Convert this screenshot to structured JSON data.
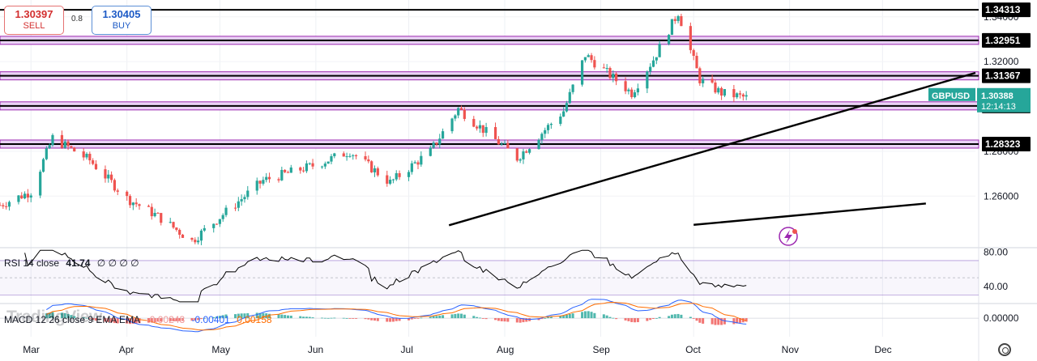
{
  "quotes": {
    "sell_price": "1.30397",
    "sell_label": "SELL",
    "buy_price": "1.30405",
    "buy_label": "BUY",
    "spread": "0.8"
  },
  "chart_data": [
    {
      "type": "candlestick",
      "symbol": "GBPUSD",
      "last_price": "1.30388",
      "countdown": "12:14:13",
      "ylim": [
        1.237,
        1.3475
      ],
      "y_ticks": [
        "1.34000",
        "1.32000",
        "1.28000",
        "1.26000"
      ],
      "x_ticks": [
        "Mar",
        "Apr",
        "May",
        "Jun",
        "Jul",
        "Aug",
        "Sep",
        "Oct",
        "Nov",
        "Dec"
      ],
      "x_tick_dates": [
        "2024-03-01",
        "2024-04-01",
        "2024-05-01",
        "2024-06-01",
        "2024-07-01",
        "2024-08-01",
        "2024-09-01",
        "2024-10-01",
        "2024-11-01",
        "2024-12-01"
      ],
      "x_range": [
        "2024-02-20",
        "2024-12-31"
      ],
      "horizontal_levels": [
        {
          "label": "1.34313",
          "value": 1.34313,
          "zone": false
        },
        {
          "label": "1.32951",
          "value": 1.32951,
          "zone": true
        },
        {
          "label": "1.31367",
          "value": 1.31367,
          "zone": true
        },
        {
          "label": "1.30026",
          "value": 1.30026,
          "zone": true
        },
        {
          "label": "1.28323",
          "value": 1.28323,
          "zone": true
        }
      ],
      "trendlines": [
        {
          "from": [
            "2024-07-14",
            1.247
          ],
          "to": [
            "2024-12-31",
            1.315
          ]
        },
        {
          "from": [
            "2024-10-01",
            1.2472
          ],
          "to": [
            "2024-12-15",
            1.2567
          ]
        }
      ],
      "anchor_points": [
        {
          "date": "2024-02-20",
          "value": 1.256
        },
        {
          "date": "2024-03-01",
          "value": 1.262
        },
        {
          "date": "2024-03-08",
          "value": 1.286
        },
        {
          "date": "2024-03-20",
          "value": 1.276
        },
        {
          "date": "2024-04-01",
          "value": 1.259
        },
        {
          "date": "2024-04-11",
          "value": 1.251
        },
        {
          "date": "2024-04-22",
          "value": 1.24
        },
        {
          "date": "2024-05-03",
          "value": 1.253
        },
        {
          "date": "2024-05-15",
          "value": 1.267
        },
        {
          "date": "2024-06-01",
          "value": 1.274
        },
        {
          "date": "2024-06-12",
          "value": 1.28
        },
        {
          "date": "2024-06-25",
          "value": 1.266
        },
        {
          "date": "2024-07-08",
          "value": 1.28
        },
        {
          "date": "2024-07-17",
          "value": 1.299
        },
        {
          "date": "2024-08-05",
          "value": 1.277
        },
        {
          "date": "2024-08-20",
          "value": 1.298
        },
        {
          "date": "2024-08-27",
          "value": 1.323
        },
        {
          "date": "2024-09-11",
          "value": 1.306
        },
        {
          "date": "2024-09-18",
          "value": 1.321
        },
        {
          "date": "2024-09-26",
          "value": 1.342
        },
        {
          "date": "2024-10-03",
          "value": 1.312
        },
        {
          "date": "2024-10-10",
          "value": 1.306
        },
        {
          "date": "2024-10-18",
          "value": 1.3039
        }
      ]
    },
    {
      "type": "line",
      "name": "RSI",
      "label": "RSI 14 close",
      "value": "41.74",
      "placeholders": [
        "∅",
        "∅",
        "∅",
        "∅"
      ],
      "ylim": [
        20,
        85
      ],
      "y_ticks": [
        "80.00",
        "40.00"
      ],
      "bands": [
        70,
        30
      ],
      "midline": 50
    },
    {
      "type": "histogram",
      "name": "MACD",
      "label": "MACD 12 26 close 9 EMA EMA",
      "values_text": [
        "-0.00243",
        "-0.00401",
        "0.00158"
      ],
      "ylim": [
        -0.0095,
        0.0075
      ],
      "y_ticks": [
        "0.00000"
      ]
    }
  ],
  "branding": {
    "logo_text": "TradingView"
  },
  "colors": {
    "up": "#26a69a",
    "down": "#ef5350",
    "zone_fill": "#e9d2f4",
    "zone_stroke": "#9c27b0",
    "level": "#000000",
    "symbol_tag": "#26a69a",
    "macd_line": "#2962ff",
    "signal_line": "#ff6d00",
    "rsi_line": "#000000",
    "rsi_band": "#7e57c2"
  },
  "icons": {
    "watermark_icon": "flash-icon",
    "settings_icon": "settings-icon"
  }
}
